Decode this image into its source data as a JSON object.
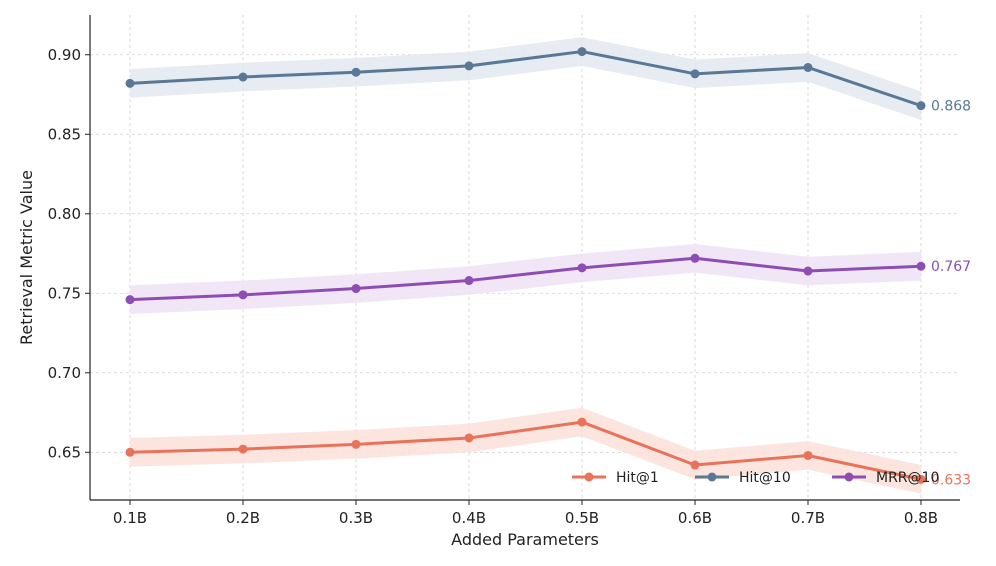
{
  "chart_data": {
    "type": "line",
    "title": "",
    "xlabel": "Added Parameters",
    "ylabel": "Retrieval Metric Value",
    "categories": [
      "0.1B",
      "0.2B",
      "0.3B",
      "0.4B",
      "0.5B",
      "0.6B",
      "0.7B",
      "0.8B"
    ],
    "ylim": [
      0.62,
      0.925
    ],
    "yticks": [
      0.65,
      0.7,
      0.75,
      0.8,
      0.85,
      0.9
    ],
    "ytick_labels": [
      "0.65",
      "0.70",
      "0.75",
      "0.80",
      "0.85",
      "0.90"
    ],
    "grid": true,
    "legend_position": "bottom-right",
    "series": [
      {
        "key": "hit1",
        "name": "Hit@1",
        "color": "#e8735a",
        "band_color": "#fbe0d9",
        "values": [
          0.65,
          0.652,
          0.655,
          0.659,
          0.669,
          0.642,
          0.648,
          0.633
        ],
        "band": 0.009,
        "end_label": "0.633"
      },
      {
        "key": "hit10",
        "name": "Hit@10",
        "color": "#5a7896",
        "band_color": "#e3e8f0",
        "values": [
          0.882,
          0.886,
          0.889,
          0.893,
          0.902,
          0.888,
          0.892,
          0.868
        ],
        "band": 0.009,
        "end_label": "0.868"
      },
      {
        "key": "mrr10",
        "name": "MRR@10",
        "color": "#8e4db5",
        "band_color": "#efe2f5",
        "values": [
          0.746,
          0.749,
          0.753,
          0.758,
          0.766,
          0.772,
          0.764,
          0.767
        ],
        "band": 0.009,
        "end_label": "0.767"
      }
    ]
  }
}
